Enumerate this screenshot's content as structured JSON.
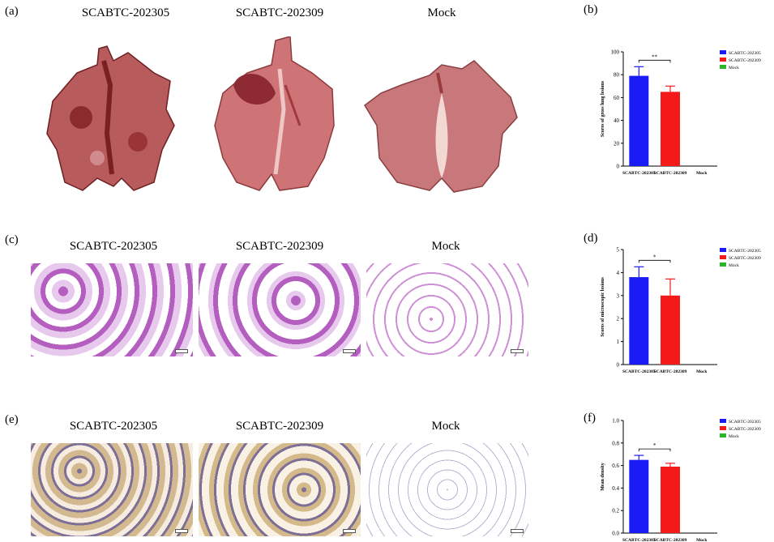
{
  "panels": {
    "a": {
      "label": "(a)",
      "titles": [
        "SCABTC-202305",
        "SCABTC-202309",
        "Mock"
      ]
    },
    "b": {
      "label": "(b)"
    },
    "c": {
      "label": "(c)",
      "titles": [
        "SCABTC-202305",
        "SCABTC-202309",
        "Mock"
      ]
    },
    "d": {
      "label": "(d)"
    },
    "e": {
      "label": "(e)",
      "titles": [
        "SCABTC-202305",
        "SCABTC-202309",
        "Mock"
      ]
    },
    "f": {
      "label": "(f)"
    }
  },
  "colors": {
    "blue": "#1a1af5",
    "red": "#f51a1a",
    "green": "#2ab52a",
    "lung": "#c9686a",
    "lung_dark": "#8e2a2c"
  },
  "chart_data": [
    {
      "type": "bar",
      "categories": [
        "SCABTC-202305",
        "SCABTC-202309",
        "Mock"
      ],
      "values": [
        79,
        65,
        0
      ],
      "errors": [
        8,
        5,
        0
      ],
      "colors": [
        "#1a1af5",
        "#f51a1a",
        "#2ab52a"
      ],
      "legend": [
        "SCABTC-202305",
        "SCABTC-202309",
        "Mock"
      ],
      "ylabel": "Scores of gross lung lesions",
      "ylim": [
        0,
        100
      ],
      "yticks": [
        "0",
        "20",
        "40",
        "60",
        "80",
        "100"
      ],
      "sig": "**",
      "legend_position": "top-right"
    },
    {
      "type": "bar",
      "categories": [
        "SCABTC-202305",
        "SCABTC-202309",
        "Mock"
      ],
      "values": [
        3.8,
        3.0,
        0
      ],
      "errors": [
        0.45,
        0.72,
        0
      ],
      "colors": [
        "#1a1af5",
        "#f51a1a",
        "#2ab52a"
      ],
      "legend": [
        "SCABTC-202305",
        "SCABTC-202309",
        "Mock"
      ],
      "ylabel": "Scores of microscopic lesions",
      "ylim": [
        0,
        5
      ],
      "yticks": [
        "0",
        "1",
        "2",
        "3",
        "4",
        "5"
      ],
      "sig": "*",
      "legend_position": "top-right"
    },
    {
      "type": "bar",
      "categories": [
        "SCABTC-202305",
        "SCABTC-202309",
        "Mock"
      ],
      "values": [
        0.65,
        0.59,
        0
      ],
      "errors": [
        0.04,
        0.03,
        0
      ],
      "colors": [
        "#1a1af5",
        "#f51a1a",
        "#2ab52a"
      ],
      "legend": [
        "SCABTC-202305",
        "SCABTC-202309",
        "Mock"
      ],
      "ylabel": "Mean density",
      "ylim": [
        0,
        1.0
      ],
      "yticks": [
        "0.0",
        "0.2",
        "0.4",
        "0.6",
        "0.8",
        "1.0"
      ],
      "sig": "*",
      "legend_position": "top-right"
    }
  ]
}
